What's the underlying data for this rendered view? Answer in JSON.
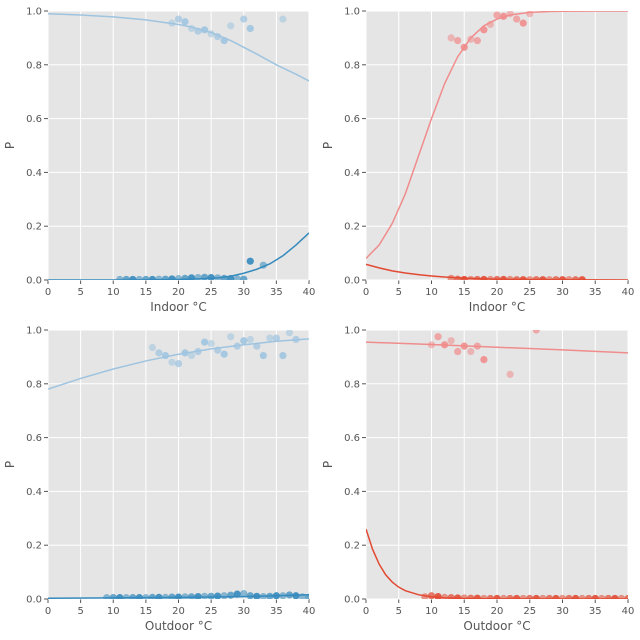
{
  "colors": {
    "background": "#e5e5e5",
    "grid": "#ffffff",
    "text": "#555555",
    "blue_dark": "#348abd",
    "blue_light": "#9ec4e0",
    "red_dark": "#e24a33",
    "red_light": "#f08c8c"
  },
  "chart_data": [
    {
      "type": "scatter",
      "xlabel": "Indoor °C",
      "ylabel": "P",
      "xlim": [
        0,
        40
      ],
      "ylim": [
        0,
        1
      ],
      "xticks": [
        "0",
        "5",
        "10",
        "15",
        "20",
        "25",
        "30",
        "35",
        "40"
      ],
      "yticks": [
        "0.0",
        "0.2",
        "0.4",
        "0.6",
        "0.8",
        "1.0"
      ],
      "grid": true,
      "series": [
        {
          "color": "#9ec4e0",
          "curve": {
            "x": [
              0,
              5,
              10,
              15,
              20,
              22,
              25,
              28,
              30,
              32,
              35,
              38,
              40
            ],
            "y": [
              0.99,
              0.985,
              0.978,
              0.967,
              0.95,
              0.94,
              0.92,
              0.89,
              0.865,
              0.84,
              0.8,
              0.765,
              0.74
            ]
          },
          "points": [
            [
              19,
              0.955
            ],
            [
              20,
              0.97
            ],
            [
              21,
              0.96
            ],
            [
              22,
              0.935
            ],
            [
              23,
              0.925
            ],
            [
              24,
              0.93
            ],
            [
              25,
              0.915
            ],
            [
              26,
              0.905
            ],
            [
              27,
              0.89
            ],
            [
              28,
              0.945
            ],
            [
              30,
              0.97
            ],
            [
              31,
              0.935
            ],
            [
              36,
              0.97
            ]
          ]
        },
        {
          "color": "#348abd",
          "curve": {
            "x": [
              0,
              10,
              15,
              20,
              24,
              26,
              28,
              30,
              32,
              34,
              36,
              38,
              40
            ],
            "y": [
              0,
              0,
              0.0005,
              0.002,
              0.005,
              0.008,
              0.014,
              0.025,
              0.04,
              0.06,
              0.09,
              0.13,
              0.175
            ]
          },
          "points": [
            [
              11,
              0.002
            ],
            [
              12,
              0.002
            ],
            [
              13,
              0.002
            ],
            [
              14,
              0.002
            ],
            [
              15,
              0.002
            ],
            [
              16,
              0.002
            ],
            [
              17,
              0.003
            ],
            [
              18,
              0.003
            ],
            [
              19,
              0.004
            ],
            [
              20,
              0.005
            ],
            [
              21,
              0.006
            ],
            [
              22,
              0.008
            ],
            [
              23,
              0.009
            ],
            [
              24,
              0.01
            ],
            [
              25,
              0.009
            ],
            [
              26,
              0.008
            ],
            [
              27,
              0.006
            ],
            [
              28,
              0.005
            ],
            [
              29,
              0.004
            ],
            [
              30,
              0.003
            ],
            [
              31,
              0.07
            ],
            [
              33,
              0.055
            ]
          ]
        }
      ]
    },
    {
      "type": "scatter",
      "xlabel": "Indoor °C",
      "ylabel": "P",
      "xlim": [
        0,
        40
      ],
      "ylim": [
        0,
        1
      ],
      "xticks": [
        "0",
        "5",
        "10",
        "15",
        "20",
        "25",
        "30",
        "35",
        "40"
      ],
      "yticks": [
        "0.0",
        "0.2",
        "0.4",
        "0.6",
        "0.8",
        "1.0"
      ],
      "grid": true,
      "series": [
        {
          "color": "#f08c8c",
          "curve": {
            "x": [
              0,
              2,
              4,
              6,
              8,
              10,
              12,
              14,
              16,
              18,
              20,
              22,
              25,
              28,
              30,
              35,
              40
            ],
            "y": [
              0.08,
              0.13,
              0.21,
              0.32,
              0.46,
              0.6,
              0.73,
              0.83,
              0.9,
              0.945,
              0.97,
              0.985,
              0.995,
              0.998,
              0.999,
              1.0,
              1.0
            ]
          },
          "points": [
            [
              13,
              0.9
            ],
            [
              14,
              0.89
            ],
            [
              15,
              0.865
            ],
            [
              16,
              0.895
            ],
            [
              17,
              0.89
            ],
            [
              18,
              0.93
            ],
            [
              19,
              0.95
            ],
            [
              20,
              0.985
            ],
            [
              21,
              0.98
            ],
            [
              22,
              0.99
            ],
            [
              23,
              0.97
            ],
            [
              24,
              0.955
            ],
            [
              25,
              0.99
            ]
          ]
        },
        {
          "color": "#e24a33",
          "curve": {
            "x": [
              0,
              2,
              4,
              6,
              8,
              10,
              12,
              15,
              18,
              20,
              25,
              30,
              35,
              40
            ],
            "y": [
              0.058,
              0.045,
              0.034,
              0.026,
              0.02,
              0.015,
              0.011,
              0.007,
              0.004,
              0.003,
              0.0015,
              0.0007,
              0.0003,
              0.0001
            ]
          },
          "points": [
            [
              13,
              0.006
            ],
            [
              14,
              0.003
            ],
            [
              15,
              0.002
            ],
            [
              16,
              0.002
            ],
            [
              17,
              0.002
            ],
            [
              18,
              0.002
            ],
            [
              19,
              0.002
            ],
            [
              20,
              0.002
            ],
            [
              21,
              0.002
            ],
            [
              22,
              0.002
            ],
            [
              23,
              0.001
            ],
            [
              24,
              0.001
            ],
            [
              25,
              0.001
            ],
            [
              26,
              0.001
            ],
            [
              27,
              0.001
            ],
            [
              28,
              0.001
            ],
            [
              29,
              0.001
            ],
            [
              30,
              0.001
            ],
            [
              31,
              0.001
            ],
            [
              32,
              0.001
            ],
            [
              33,
              0.001
            ]
          ]
        }
      ]
    },
    {
      "type": "scatter",
      "xlabel": "Outdoor °C",
      "ylabel": "P",
      "xlim": [
        0,
        40
      ],
      "ylim": [
        0,
        1
      ],
      "xticks": [
        "0",
        "5",
        "10",
        "15",
        "20",
        "25",
        "30",
        "35",
        "40"
      ],
      "yticks": [
        "0.0",
        "0.2",
        "0.4",
        "0.6",
        "0.8",
        "1.0"
      ],
      "grid": true,
      "series": [
        {
          "color": "#9ec4e0",
          "curve": {
            "x": [
              0,
              5,
              10,
              15,
              20,
              25,
              30,
              35,
              40
            ],
            "y": [
              0.78,
              0.82,
              0.855,
              0.885,
              0.91,
              0.93,
              0.945,
              0.958,
              0.967
            ]
          },
          "points": [
            [
              16,
              0.935
            ],
            [
              17,
              0.915
            ],
            [
              18,
              0.905
            ],
            [
              19,
              0.88
            ],
            [
              20,
              0.875
            ],
            [
              21,
              0.915
            ],
            [
              22,
              0.905
            ],
            [
              23,
              0.92
            ],
            [
              24,
              0.955
            ],
            [
              25,
              0.95
            ],
            [
              26,
              0.925
            ],
            [
              27,
              0.91
            ],
            [
              28,
              0.975
            ],
            [
              29,
              0.94
            ],
            [
              30,
              0.96
            ],
            [
              31,
              0.965
            ],
            [
              32,
              0.94
            ],
            [
              33,
              0.905
            ],
            [
              34,
              0.97
            ],
            [
              35,
              0.97
            ],
            [
              36,
              0.905
            ],
            [
              37,
              0.99
            ],
            [
              38,
              0.965
            ]
          ]
        },
        {
          "color": "#348abd",
          "curve": {
            "x": [
              0,
              10,
              20,
              30,
              35,
              40
            ],
            "y": [
              0.003,
              0.004,
              0.006,
              0.009,
              0.012,
              0.016
            ]
          },
          "points": [
            [
              9,
              0.005
            ],
            [
              10,
              0.005
            ],
            [
              11,
              0.005
            ],
            [
              12,
              0.005
            ],
            [
              13,
              0.005
            ],
            [
              14,
              0.005
            ],
            [
              15,
              0.005
            ],
            [
              16,
              0.006
            ],
            [
              17,
              0.006
            ],
            [
              18,
              0.006
            ],
            [
              19,
              0.007
            ],
            [
              20,
              0.007
            ],
            [
              21,
              0.008
            ],
            [
              22,
              0.008
            ],
            [
              23,
              0.009
            ],
            [
              24,
              0.01
            ],
            [
              25,
              0.01
            ],
            [
              26,
              0.011
            ],
            [
              27,
              0.012
            ],
            [
              28,
              0.014
            ],
            [
              29,
              0.018
            ],
            [
              30,
              0.02
            ],
            [
              31,
              0.012
            ],
            [
              32,
              0.01
            ],
            [
              33,
              0.009
            ],
            [
              34,
              0.01
            ],
            [
              35,
              0.012
            ],
            [
              36,
              0.012
            ],
            [
              37,
              0.015
            ],
            [
              38,
              0.012
            ],
            [
              39,
              0.008
            ],
            [
              40,
              0.006
            ]
          ]
        }
      ]
    },
    {
      "type": "scatter",
      "xlabel": "Outdoor °C",
      "ylabel": "P",
      "xlim": [
        0,
        40
      ],
      "ylim": [
        0,
        1
      ],
      "xticks": [
        "0",
        "5",
        "10",
        "15",
        "20",
        "25",
        "30",
        "35",
        "40"
      ],
      "yticks": [
        "0.0",
        "0.2",
        "0.4",
        "0.6",
        "0.8",
        "1.0"
      ],
      "grid": true,
      "series": [
        {
          "color": "#f08c8c",
          "curve": {
            "x": [
              0,
              10,
              20,
              30,
              40
            ],
            "y": [
              0.955,
              0.946,
              0.936,
              0.926,
              0.915
            ]
          },
          "points": [
            [
              10,
              0.945
            ],
            [
              11,
              0.975
            ],
            [
              12,
              0.945
            ],
            [
              13,
              0.96
            ],
            [
              14,
              0.92
            ],
            [
              15,
              0.94
            ],
            [
              16,
              0.92
            ],
            [
              17,
              0.94
            ],
            [
              18,
              0.89
            ],
            [
              22,
              0.835
            ],
            [
              26,
              1.0
            ]
          ]
        },
        {
          "color": "#e24a33",
          "curve": {
            "x": [
              0,
              1,
              2,
              3,
              4,
              5,
              6,
              8,
              10,
              12,
              15,
              20,
              30,
              40
            ],
            "y": [
              0.26,
              0.185,
              0.13,
              0.09,
              0.063,
              0.044,
              0.031,
              0.016,
              0.008,
              0.004,
              0.002,
              0.0005,
              0.0001,
              0
            ]
          },
          "points": [
            [
              9,
              0.008
            ],
            [
              10,
              0.012
            ],
            [
              11,
              0.009
            ],
            [
              12,
              0.006
            ],
            [
              13,
              0.005
            ],
            [
              14,
              0.004
            ],
            [
              15,
              0.004
            ],
            [
              16,
              0.003
            ],
            [
              17,
              0.003
            ],
            [
              18,
              0.002
            ],
            [
              19,
              0.002
            ],
            [
              20,
              0.002
            ],
            [
              21,
              0.002
            ],
            [
              22,
              0.002
            ],
            [
              23,
              0.002
            ],
            [
              24,
              0.002
            ],
            [
              25,
              0.002
            ],
            [
              26,
              0.002
            ],
            [
              27,
              0.002
            ],
            [
              28,
              0.002
            ],
            [
              29,
              0.002
            ],
            [
              30,
              0.002
            ],
            [
              31,
              0.002
            ],
            [
              32,
              0.002
            ],
            [
              33,
              0.002
            ],
            [
              34,
              0.002
            ],
            [
              35,
              0.002
            ],
            [
              36,
              0.002
            ],
            [
              37,
              0.002
            ],
            [
              38,
              0.002
            ],
            [
              39,
              0.002
            ],
            [
              40,
              0.002
            ]
          ]
        }
      ]
    }
  ]
}
